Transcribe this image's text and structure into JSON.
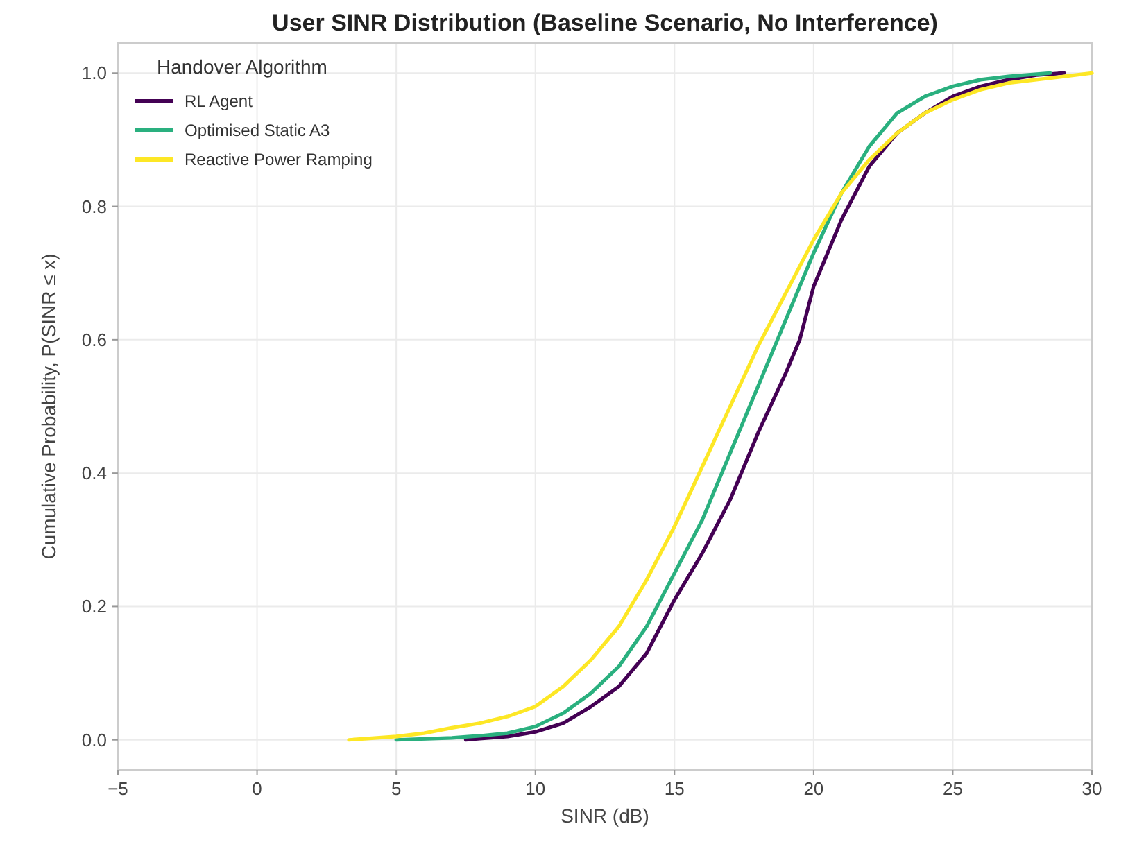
{
  "chart_data": {
    "type": "line",
    "title": "User SINR Distribution (Baseline Scenario, No Interference)",
    "xlabel": "SINR (dB)",
    "ylabel": "Cumulative Probability, P(SINR ≤ x)",
    "legend_title": "Handover Algorithm",
    "legend": "top left",
    "grid": true,
    "xlim": [
      -5,
      30
    ],
    "xticks": [
      -5,
      0,
      5,
      10,
      15,
      20,
      25,
      30
    ],
    "ylim": [
      -0.045,
      1.045
    ],
    "yticks": [
      {
        "value": 0,
        "label": "0.0"
      },
      {
        "value": 0.2,
        "label": "0.2"
      },
      {
        "value": 0.4,
        "label": "0.4"
      },
      {
        "value": 0.6,
        "label": "0.6"
      },
      {
        "value": 0.8,
        "label": "0.8"
      },
      {
        "value": 1,
        "label": "1.0"
      }
    ],
    "series": [
      {
        "name": "RL Agent",
        "color": "#440154",
        "x": [
          7.5,
          8,
          9,
          10,
          11,
          12,
          13,
          14,
          15,
          16,
          17,
          17.4,
          18,
          19,
          19.5,
          20,
          21,
          22,
          23,
          24,
          25,
          26,
          27,
          28,
          29
        ],
        "values": [
          0,
          0.002,
          0.005,
          0.012,
          0.025,
          0.05,
          0.08,
          0.13,
          0.21,
          0.28,
          0.36,
          0.4,
          0.46,
          0.55,
          0.6,
          0.68,
          0.78,
          0.86,
          0.91,
          0.94,
          0.965,
          0.98,
          0.99,
          0.997,
          1
        ]
      },
      {
        "name": "Optimised Static A3",
        "color": "#2ab07f",
        "x": [
          5,
          7,
          8,
          9,
          10,
          11,
          12,
          13,
          14,
          15,
          16,
          17,
          18,
          19,
          20,
          21,
          22,
          23,
          24,
          25,
          26,
          27,
          28.5
        ],
        "values": [
          0,
          0.003,
          0.006,
          0.01,
          0.02,
          0.04,
          0.07,
          0.11,
          0.17,
          0.25,
          0.33,
          0.43,
          0.53,
          0.63,
          0.73,
          0.82,
          0.89,
          0.94,
          0.965,
          0.98,
          0.99,
          0.995,
          1
        ]
      },
      {
        "name": "Reactive Power Ramping",
        "color": "#fde725",
        "x": [
          3.3,
          5,
          6,
          7,
          8,
          9,
          10,
          11,
          12,
          13,
          14,
          15,
          16,
          17,
          18,
          19,
          20,
          21,
          22,
          23,
          24,
          25,
          26,
          27,
          28,
          29,
          30
        ],
        "values": [
          0,
          0.005,
          0.01,
          0.018,
          0.025,
          0.035,
          0.05,
          0.08,
          0.12,
          0.17,
          0.24,
          0.32,
          0.41,
          0.5,
          0.59,
          0.67,
          0.75,
          0.82,
          0.87,
          0.91,
          0.94,
          0.96,
          0.975,
          0.985,
          0.99,
          0.995,
          1
        ]
      }
    ]
  }
}
